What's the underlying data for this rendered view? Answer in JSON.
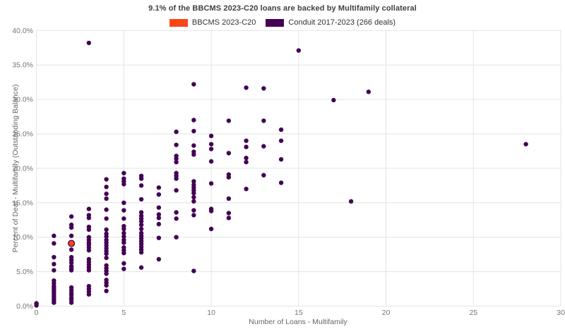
{
  "title": "9.1% of the BBCMS 2023-C20 loans are backed by Multifamily collateral",
  "legend": [
    {
      "label": "BBCMS 2023-C20",
      "color": "#fa4616"
    },
    {
      "label": "Conduit 2017-2023 (266 deals)",
      "color": "#440154"
    }
  ],
  "colors": {
    "bbcms": "#fa4616",
    "conduit": "#440154",
    "grid": "#e3e3e3",
    "tick_label": "#757575",
    "axis_title": "#666666",
    "title_text": "#404040",
    "background": "#ffffff"
  },
  "chart_data": {
    "type": "scatter",
    "title": "9.1% of the BBCMS 2023-C20 loans are backed by Multifamily collateral",
    "xlabel": "Number of Loans - Multifamily",
    "ylabel": "Percent of Deal - Multifamily (Outstanding Balance)",
    "xlim": [
      0,
      30
    ],
    "ylim": [
      0,
      40
    ],
    "grid": true,
    "legend_position": "top-center",
    "x_ticks": [
      0,
      5,
      10,
      15,
      20,
      25,
      30
    ],
    "x_tick_labels": [
      "0",
      "5",
      "10",
      "15",
      "20",
      "25",
      "30"
    ],
    "y_ticks": [
      0,
      5,
      10,
      15,
      20,
      25,
      30,
      35,
      40
    ],
    "y_tick_labels": [
      "0.0%",
      "5.0%",
      "10.0%",
      "15.0%",
      "20.0%",
      "25.0%",
      "30.0%",
      "35.0%",
      "40.0%"
    ],
    "series": [
      {
        "name": "Conduit 2017-2023 (266 deals)",
        "color": "#440154",
        "marker_radius": 3.2,
        "points": [
          [
            0,
            0.1
          ],
          [
            0,
            0.4
          ],
          [
            1,
            10.2
          ],
          [
            1,
            9.1
          ],
          [
            1,
            7.1
          ],
          [
            1,
            6.1
          ],
          [
            1,
            5.2
          ],
          [
            1,
            3.7
          ],
          [
            1,
            3.3
          ],
          [
            1,
            2.9
          ],
          [
            1,
            2.6
          ],
          [
            1,
            2.3
          ],
          [
            1,
            2.0
          ],
          [
            1,
            1.7
          ],
          [
            1,
            1.4
          ],
          [
            1,
            1.1
          ],
          [
            1,
            0.8
          ],
          [
            1,
            0.5
          ],
          [
            2,
            13.0
          ],
          [
            2,
            11.8
          ],
          [
            2,
            11.4
          ],
          [
            2,
            10.2
          ],
          [
            2,
            9.1
          ],
          [
            2,
            8.2
          ],
          [
            2,
            7.1
          ],
          [
            2,
            6.7
          ],
          [
            2,
            6.3
          ],
          [
            2,
            5.8
          ],
          [
            2,
            5.5
          ],
          [
            2,
            5.2
          ],
          [
            2,
            2.7
          ],
          [
            2,
            2.3
          ],
          [
            2,
            1.9
          ],
          [
            2,
            1.6
          ],
          [
            2,
            1.2
          ],
          [
            2,
            0.9
          ],
          [
            2,
            0.5
          ],
          [
            3,
            38.2
          ],
          [
            3,
            14.1
          ],
          [
            3,
            13.2
          ],
          [
            3,
            12.8
          ],
          [
            3,
            11.5
          ],
          [
            3,
            11.1
          ],
          [
            3,
            10.0
          ],
          [
            3,
            9.6
          ],
          [
            3,
            9.2
          ],
          [
            3,
            8.9
          ],
          [
            3,
            8.5
          ],
          [
            3,
            8.1
          ],
          [
            3,
            6.8
          ],
          [
            3,
            6.4
          ],
          [
            3,
            6.0
          ],
          [
            3,
            5.6
          ],
          [
            3,
            5.2
          ],
          [
            3,
            2.9
          ],
          [
            3,
            2.5
          ],
          [
            3,
            2.1
          ],
          [
            3,
            1.7
          ],
          [
            4,
            18.4
          ],
          [
            4,
            17.3
          ],
          [
            4,
            16.3
          ],
          [
            4,
            15.6
          ],
          [
            4,
            14.0
          ],
          [
            4,
            12.7
          ],
          [
            4,
            11.1
          ],
          [
            4,
            10.5
          ],
          [
            4,
            10.1
          ],
          [
            4,
            9.6
          ],
          [
            4,
            9.2
          ],
          [
            4,
            8.8
          ],
          [
            4,
            8.4
          ],
          [
            4,
            8.0
          ],
          [
            4,
            7.6
          ],
          [
            4,
            7.0
          ],
          [
            4,
            5.9
          ],
          [
            4,
            5.5
          ],
          [
            4,
            5.1
          ],
          [
            4,
            4.7
          ],
          [
            4,
            3.8
          ],
          [
            4,
            3.4
          ],
          [
            4,
            3.0
          ],
          [
            4,
            2.2
          ],
          [
            5,
            19.3
          ],
          [
            5,
            18.5
          ],
          [
            5,
            18.1
          ],
          [
            5,
            17.7
          ],
          [
            5,
            15.0
          ],
          [
            5,
            13.9
          ],
          [
            5,
            12.7
          ],
          [
            5,
            11.6
          ],
          [
            5,
            11.2
          ],
          [
            5,
            10.6
          ],
          [
            5,
            10.1
          ],
          [
            5,
            9.6
          ],
          [
            5,
            9.2
          ],
          [
            5,
            8.5
          ],
          [
            5,
            8.1
          ],
          [
            5,
            7.7
          ],
          [
            5,
            6.2
          ],
          [
            5,
            5.4
          ],
          [
            6,
            18.9
          ],
          [
            6,
            18.5
          ],
          [
            6,
            17.5
          ],
          [
            6,
            15.5
          ],
          [
            6,
            13.6
          ],
          [
            6,
            13.1
          ],
          [
            6,
            12.7
          ],
          [
            6,
            12.3
          ],
          [
            6,
            11.8
          ],
          [
            6,
            11.2
          ],
          [
            6,
            10.6
          ],
          [
            6,
            10.2
          ],
          [
            6,
            9.8
          ],
          [
            6,
            9.4
          ],
          [
            6,
            9.0
          ],
          [
            6,
            8.6
          ],
          [
            6,
            8.2
          ],
          [
            6,
            7.8
          ],
          [
            6,
            5.6
          ],
          [
            7,
            17.2
          ],
          [
            7,
            16.2
          ],
          [
            7,
            14.3
          ],
          [
            7,
            13.3
          ],
          [
            7,
            12.8
          ],
          [
            7,
            11.9
          ],
          [
            7,
            9.9
          ],
          [
            7,
            6.8
          ],
          [
            8,
            25.3
          ],
          [
            8,
            23.4
          ],
          [
            8,
            21.8
          ],
          [
            8,
            21.4
          ],
          [
            8,
            20.9
          ],
          [
            8,
            19.3
          ],
          [
            8,
            18.9
          ],
          [
            8,
            18.5
          ],
          [
            8,
            16.8
          ],
          [
            8,
            13.6
          ],
          [
            8,
            12.7
          ],
          [
            8,
            10.0
          ],
          [
            9,
            32.2
          ],
          [
            9,
            27.0
          ],
          [
            9,
            25.4
          ],
          [
            9,
            23.3
          ],
          [
            9,
            22.4
          ],
          [
            9,
            22.0
          ],
          [
            9,
            18.1
          ],
          [
            9,
            17.6
          ],
          [
            9,
            17.2
          ],
          [
            9,
            16.8
          ],
          [
            9,
            16.4
          ],
          [
            9,
            15.8
          ],
          [
            9,
            15.2
          ],
          [
            9,
            13.9
          ],
          [
            9,
            13.2
          ],
          [
            9,
            5.1
          ],
          [
            10,
            24.7
          ],
          [
            10,
            23.5
          ],
          [
            10,
            22.8
          ],
          [
            10,
            21.0
          ],
          [
            10,
            17.8
          ],
          [
            10,
            14.1
          ],
          [
            10,
            13.8
          ],
          [
            10,
            11.2
          ],
          [
            11,
            26.9
          ],
          [
            11,
            22.2
          ],
          [
            11,
            19.1
          ],
          [
            11,
            18.7
          ],
          [
            11,
            15.6
          ],
          [
            11,
            13.5
          ],
          [
            11,
            12.8
          ],
          [
            12,
            31.7
          ],
          [
            12,
            24.0
          ],
          [
            12,
            23.1
          ],
          [
            12,
            21.5
          ],
          [
            12,
            20.9
          ],
          [
            12,
            17.0
          ],
          [
            13,
            31.6
          ],
          [
            13,
            26.9
          ],
          [
            13,
            23.2
          ],
          [
            13,
            19.0
          ],
          [
            14,
            25.6
          ],
          [
            14,
            24.0
          ],
          [
            14,
            21.3
          ],
          [
            14,
            17.9
          ],
          [
            15,
            37.1
          ],
          [
            17,
            29.9
          ],
          [
            18,
            15.2
          ],
          [
            19,
            31.1
          ],
          [
            28,
            23.5
          ]
        ]
      },
      {
        "name": "BBCMS 2023-C20",
        "color": "#fa4616",
        "stroke": "#440154",
        "stroke_width": 1.3,
        "marker_radius": 4.4,
        "points": [
          [
            2,
            9.1
          ]
        ]
      }
    ]
  }
}
